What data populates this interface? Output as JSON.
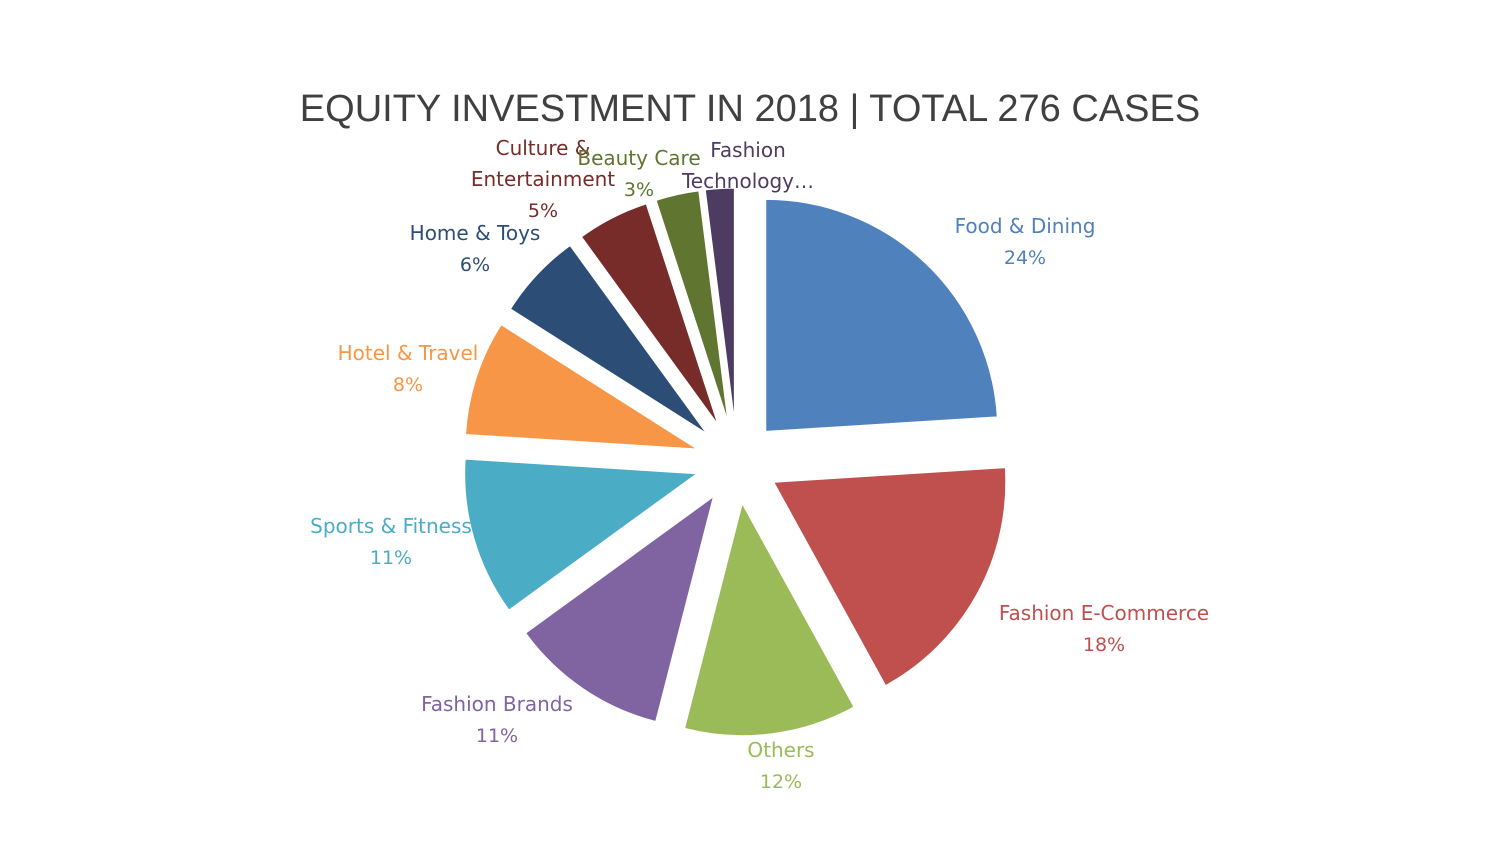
{
  "chart_data": {
    "type": "pie",
    "title": "EQUITY INVESTMENT  IN 2018 | TOTAL 276 CASES",
    "exploded": true,
    "slices": [
      {
        "name": "Food & Dining",
        "value": 24,
        "value_label": "24%",
        "color": "#4F81BD"
      },
      {
        "name": "Fashion E-Commerce",
        "value": 18,
        "value_label": "18%",
        "color": "#C0504D"
      },
      {
        "name": "Others",
        "value": 12,
        "value_label": "12%",
        "color": "#9BBB59"
      },
      {
        "name": "Fashion Brands",
        "value": 11,
        "value_label": "11%",
        "color": "#8064A2"
      },
      {
        "name": "Sports & Fitness",
        "value": 11,
        "value_label": "11%",
        "color": "#4BACC6"
      },
      {
        "name": "Hotel & Travel",
        "value": 8,
        "value_label": "8%",
        "color": "#F79646"
      },
      {
        "name": "Home & Toys",
        "value": 6,
        "value_label": "6%",
        "color": "#2C4D75"
      },
      {
        "name": "Culture & Entertainment",
        "value": 5,
        "value_label": "5%",
        "color": "#772C2A"
      },
      {
        "name": "Beauty Care",
        "value": 3,
        "value_label": "3%",
        "color": "#5F7530"
      },
      {
        "name": "Fashion Technology…",
        "value": 2,
        "value_label": "",
        "color": "#4D3B62"
      }
    ]
  }
}
